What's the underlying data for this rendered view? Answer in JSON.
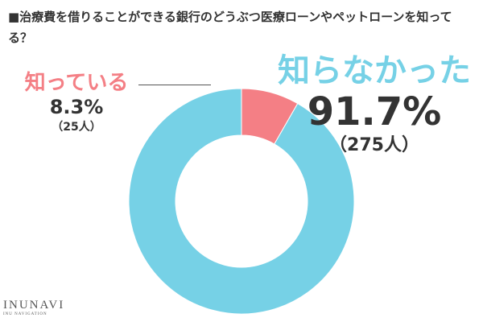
{
  "chart_data": {
    "type": "pie",
    "donut": true,
    "title": "■治療費を借りることができる銀行のどうぶつ医療ローンやペットローンを知ってる？",
    "series": [
      {
        "name": "知っている",
        "value": 8.3,
        "value_label": "8.3%",
        "count_label": "（25人）",
        "color": "#f47f85"
      },
      {
        "name": "知らなかった",
        "value": 91.7,
        "value_label": "91.7%",
        "count_label": "（275人）",
        "color": "#76d1e6"
      }
    ]
  },
  "brand": {
    "logo_text": "INUNAVI",
    "logo_sub": "INU NAVIGATION"
  }
}
